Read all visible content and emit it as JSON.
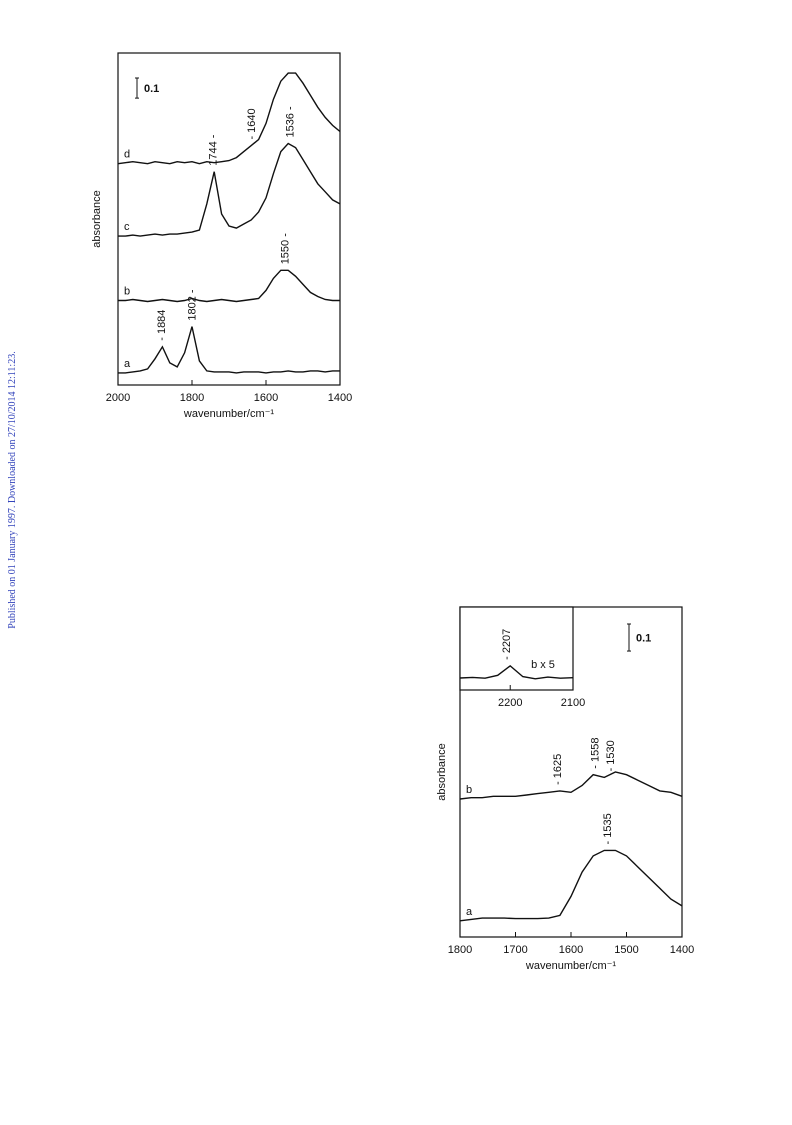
{
  "margin_note": "Published on 01 January 1997. Downloaded on 27/10/2014 12:11:23.",
  "chart_data": [
    {
      "type": "line",
      "xlabel": "wavenumber/cm⁻¹",
      "ylabel": "absorbance",
      "xlim": [
        2000,
        1400
      ],
      "ylim": [
        0,
        1.65
      ],
      "xticks": [
        2000,
        1800,
        1600,
        1400
      ],
      "scale_bar": 0.1,
      "x": [
        2000,
        1980,
        1960,
        1940,
        1920,
        1900,
        1880,
        1860,
        1840,
        1820,
        1800,
        1780,
        1760,
        1740,
        1720,
        1700,
        1680,
        1660,
        1640,
        1620,
        1600,
        1580,
        1560,
        1540,
        1520,
        1500,
        1480,
        1460,
        1440,
        1420,
        1400
      ],
      "series": [
        {
          "name": "a",
          "color": "#111111",
          "annotations": [
            {
              "x": 1884,
              "label": "- 1884"
            },
            {
              "x": 1802,
              "label": "1802 -"
            }
          ],
          "values": [
            0.06,
            0.06,
            0.065,
            0.07,
            0.08,
            0.13,
            0.19,
            0.11,
            0.09,
            0.16,
            0.29,
            0.12,
            0.07,
            0.065,
            0.065,
            0.065,
            0.06,
            0.065,
            0.065,
            0.065,
            0.06,
            0.065,
            0.065,
            0.07,
            0.065,
            0.065,
            0.07,
            0.07,
            0.065,
            0.07,
            0.07
          ]
        },
        {
          "name": "b",
          "color": "#111111",
          "annotations": [
            {
              "x": 1550,
              "label": "1550 -"
            }
          ],
          "values": [
            0.42,
            0.42,
            0.425,
            0.42,
            0.415,
            0.42,
            0.425,
            0.42,
            0.415,
            0.42,
            0.43,
            0.42,
            0.415,
            0.42,
            0.425,
            0.42,
            0.415,
            0.42,
            0.425,
            0.43,
            0.47,
            0.53,
            0.57,
            0.57,
            0.54,
            0.5,
            0.46,
            0.44,
            0.425,
            0.42,
            0.42
          ]
        },
        {
          "name": "c",
          "color": "#111111",
          "annotations": [
            {
              "x": 1744,
              "label": "1744 -"
            },
            {
              "x": 1536,
              "label": "1536 -"
            }
          ],
          "values": [
            0.74,
            0.74,
            0.745,
            0.74,
            0.745,
            0.75,
            0.745,
            0.75,
            0.75,
            0.755,
            0.76,
            0.77,
            0.9,
            1.06,
            0.85,
            0.79,
            0.78,
            0.8,
            0.82,
            0.86,
            0.93,
            1.05,
            1.16,
            1.2,
            1.18,
            1.12,
            1.06,
            1.0,
            0.96,
            0.92,
            0.9
          ]
        },
        {
          "name": "d",
          "color": "#111111",
          "annotations": [
            {
              "x": 1640,
              "label": "- 1640"
            }
          ],
          "values": [
            1.1,
            1.105,
            1.11,
            1.105,
            1.1,
            1.11,
            1.105,
            1.1,
            1.11,
            1.105,
            1.11,
            1.1,
            1.11,
            1.105,
            1.11,
            1.115,
            1.13,
            1.16,
            1.19,
            1.22,
            1.3,
            1.42,
            1.51,
            1.55,
            1.55,
            1.5,
            1.44,
            1.38,
            1.33,
            1.29,
            1.26
          ]
        }
      ]
    },
    {
      "type": "line",
      "xlabel": "wavenumber/cm⁻¹",
      "ylabel": "absorbance",
      "xlim": [
        1800,
        1400
      ],
      "ylim": [
        0,
        1.22
      ],
      "xticks": [
        1800,
        1700,
        1600,
        1500,
        1400
      ],
      "scale_bar": 0.1,
      "x": [
        1800,
        1780,
        1760,
        1740,
        1720,
        1700,
        1680,
        1660,
        1640,
        1620,
        1600,
        1580,
        1560,
        1540,
        1520,
        1500,
        1480,
        1460,
        1440,
        1420,
        1400
      ],
      "series": [
        {
          "name": "a",
          "color": "#111111",
          "annotations": [
            {
              "x": 1535,
              "label": "- 1535"
            }
          ],
          "values": [
            0.06,
            0.065,
            0.07,
            0.07,
            0.07,
            0.068,
            0.068,
            0.068,
            0.07,
            0.08,
            0.15,
            0.24,
            0.3,
            0.32,
            0.32,
            0.3,
            0.26,
            0.22,
            0.18,
            0.14,
            0.115
          ]
        },
        {
          "name": "b",
          "color": "#111111",
          "annotations": [
            {
              "x": 1625,
              "label": "- 1625"
            },
            {
              "x": 1558,
              "label": "- 1558"
            },
            {
              "x": 1530,
              "label": "- 1530"
            }
          ],
          "values": [
            0.51,
            0.515,
            0.515,
            0.52,
            0.52,
            0.52,
            0.525,
            0.53,
            0.535,
            0.54,
            0.535,
            0.56,
            0.6,
            0.59,
            0.61,
            0.6,
            0.58,
            0.56,
            0.54,
            0.535,
            0.52
          ]
        }
      ]
    },
    {
      "type": "line",
      "xlim": [
        2280,
        2100
      ],
      "ylim": [
        0,
        0.31
      ],
      "xticks": [
        2200,
        2100
      ],
      "note": "b x 5",
      "x": [
        2280,
        2260,
        2240,
        2220,
        2200,
        2180,
        2160,
        2140,
        2120,
        2100
      ],
      "series": [
        {
          "color": "#111111",
          "annotations": [
            {
              "x": 2207,
              "label": "- 2207"
            }
          ],
          "values": [
            0.045,
            0.047,
            0.044,
            0.055,
            0.09,
            0.05,
            0.042,
            0.048,
            0.044,
            0.046
          ]
        }
      ]
    }
  ]
}
